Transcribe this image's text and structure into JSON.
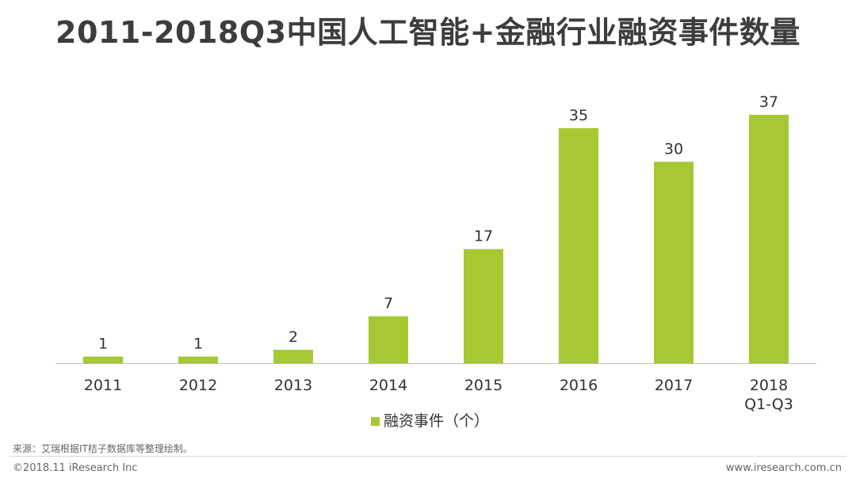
{
  "title": "2011-2018Q3中国人工智能+金融行业融资事件数量",
  "chart_data": {
    "type": "bar",
    "title": "2011-2018Q3中国人工智能+金融行业融资事件数量",
    "categories": [
      [
        "2011"
      ],
      [
        "2012"
      ],
      [
        "2013"
      ],
      [
        "2014"
      ],
      [
        "2015"
      ],
      [
        "2016"
      ],
      [
        "2017"
      ],
      [
        "2018",
        "Q1-Q3"
      ]
    ],
    "series": [
      {
        "name": "融资事件（个）",
        "values": [
          1,
          1,
          2,
          7,
          17,
          35,
          30,
          37
        ],
        "color": "#a6c833"
      }
    ],
    "legend": {
      "label": "融资事件（个）",
      "position": "bottom"
    },
    "xlabel": "",
    "ylabel": "",
    "ylim": [
      0,
      37
    ],
    "grid": false
  },
  "footer": {
    "source": "来源：艾瑞根据IT桔子数据库等整理绘制。",
    "copyright": "©2018.11 iResearch Inc",
    "website": "www.iresearch.com.cn"
  }
}
